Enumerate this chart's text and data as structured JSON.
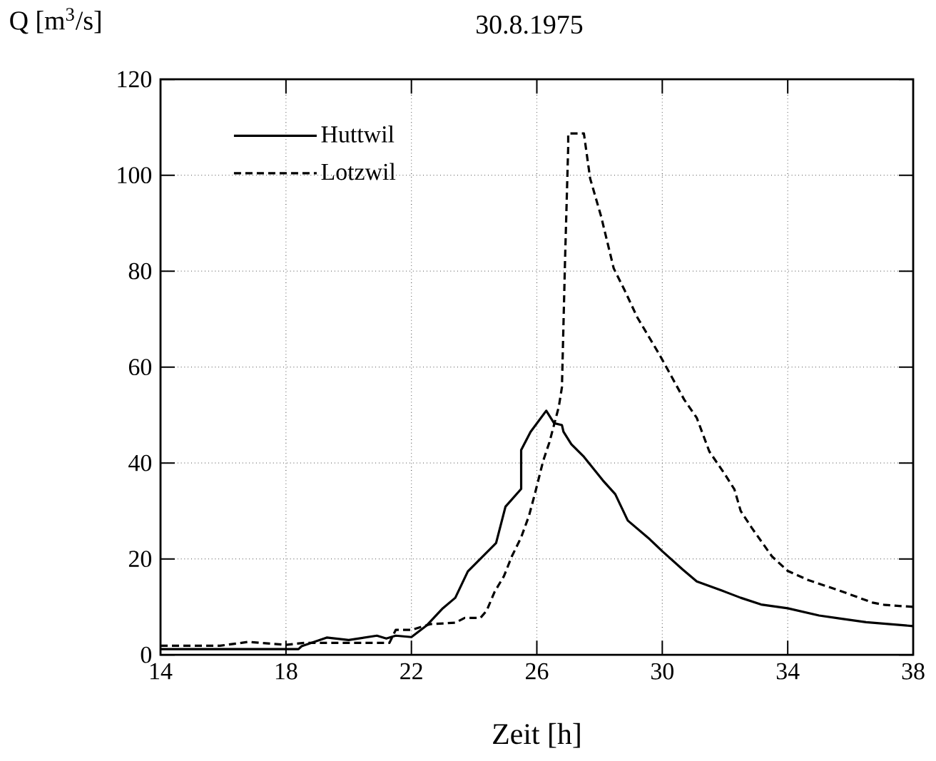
{
  "chart_data": {
    "type": "line",
    "title": "30.8.1975",
    "xlabel": "Zeit [h]",
    "ylabel": "Q [m$^{3}$/s]",
    "xlim": [
      14,
      38
    ],
    "xticks": [
      14,
      18,
      22,
      26,
      30,
      34,
      38
    ],
    "ylim": [
      0,
      120
    ],
    "yticks": [
      0,
      20,
      40,
      60,
      80,
      100,
      120
    ],
    "grid": true,
    "legend": "top left",
    "marker": "none",
    "series": [
      {
        "name": "Huttwil",
        "color": "#000000",
        "line_style": "solid",
        "x": [
          14,
          18.4,
          18.5,
          18.9,
          19.3,
          20.0,
          20.9,
          21.2,
          21.5,
          22.0,
          22.5,
          23.0,
          23.4,
          23.8,
          24.7,
          25.0,
          25.5,
          25.5,
          25.8,
          26.3,
          26.55,
          26.8,
          26.85,
          27.1,
          27.5,
          28.1,
          28.5,
          28.9,
          29.6,
          30.0,
          30.65,
          31.1,
          31.9,
          32.5,
          33.15,
          34.0,
          35.0,
          35.65,
          36.5,
          38.0
        ],
        "values": [
          1.2,
          1.2,
          1.8,
          2.7,
          3.6,
          3.1,
          4.0,
          3.4,
          4.0,
          3.7,
          6.2,
          9.7,
          11.9,
          17.4,
          23.3,
          30.9,
          34.6,
          42.7,
          46.5,
          50.9,
          48.3,
          47.9,
          46.5,
          43.9,
          41.3,
          36.4,
          33.5,
          28.0,
          24.1,
          21.6,
          17.8,
          15.3,
          13.4,
          11.9,
          10.5,
          9.7,
          8.2,
          7.6,
          6.8,
          6.0
        ]
      },
      {
        "name": "Lotzwil",
        "color": "#000000",
        "line_style": "dashed",
        "x": [
          14,
          15.9,
          16.8,
          18.0,
          18.6,
          19.05,
          21.3,
          21.5,
          22.0,
          22.6,
          23.4,
          23.7,
          24.2,
          24.4,
          24.65,
          24.95,
          25.2,
          25.5,
          25.75,
          25.95,
          26.2,
          26.4,
          26.7,
          26.8,
          26.9,
          27.0,
          27.0,
          27.5,
          27.7,
          28.05,
          28.45,
          28.8,
          29.2,
          29.9,
          30.7,
          31.1,
          31.5,
          32.0,
          32.3,
          32.5,
          32.85,
          33.5,
          34.0,
          34.65,
          35.65,
          36.7,
          37.1,
          38.0
        ],
        "values": [
          1.9,
          1.9,
          2.7,
          2.1,
          2.5,
          2.5,
          2.5,
          5.2,
          5.2,
          6.4,
          6.7,
          7.7,
          7.7,
          9.2,
          13.1,
          16.4,
          20.5,
          24.5,
          29.0,
          33.9,
          40.4,
          44.3,
          51.7,
          55.8,
          82.5,
          106,
          108.7,
          108.7,
          99.3,
          91.4,
          80.6,
          76,
          70.4,
          62.7,
          53.2,
          49.4,
          42.4,
          37.6,
          34.5,
          30.0,
          26.5,
          20.5,
          17.5,
          15.6,
          13.4,
          10.9,
          10.4,
          10.0
        ]
      }
    ]
  }
}
